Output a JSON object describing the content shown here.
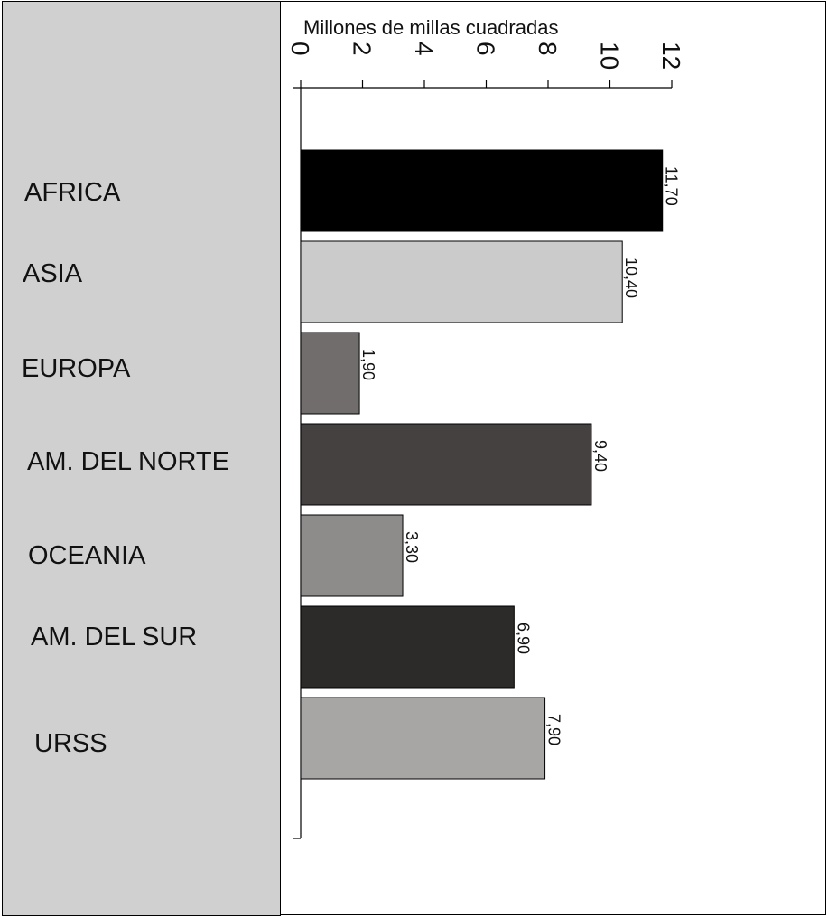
{
  "chart_data": {
    "type": "bar",
    "orientation": "horizontal",
    "title": "",
    "xlabel": "Millones de millas cuadradas",
    "ylabel": "",
    "xlim": [
      0,
      12
    ],
    "ticks": [
      0,
      2,
      4,
      6,
      8,
      10,
      12
    ],
    "tick_labels": [
      "0",
      "2",
      "4",
      "6",
      "8",
      "10",
      "12"
    ],
    "tick_label_rotation": 90,
    "data_label_rotation": 90,
    "grid": false,
    "legend": "none",
    "categories": [
      "AFRICA",
      "ASIA",
      "EUROPA",
      "AM. DEL NORTE",
      "OCEANIA",
      "AM. DEL SUR",
      "URSS"
    ],
    "values": [
      11.7,
      10.4,
      1.9,
      9.4,
      3.3,
      6.9,
      7.9
    ],
    "data_labels": [
      "11,70",
      "10,40",
      "1,90",
      "9,40",
      "3,30",
      "6,90",
      "7,90"
    ],
    "colors": [
      "#000000",
      "#cbcbcb",
      "#716d6c",
      "#454140",
      "#8e8b8b",
      "#2d2a2a",
      "#a8a5a5"
    ]
  },
  "panel_color": "#d0d0d0"
}
